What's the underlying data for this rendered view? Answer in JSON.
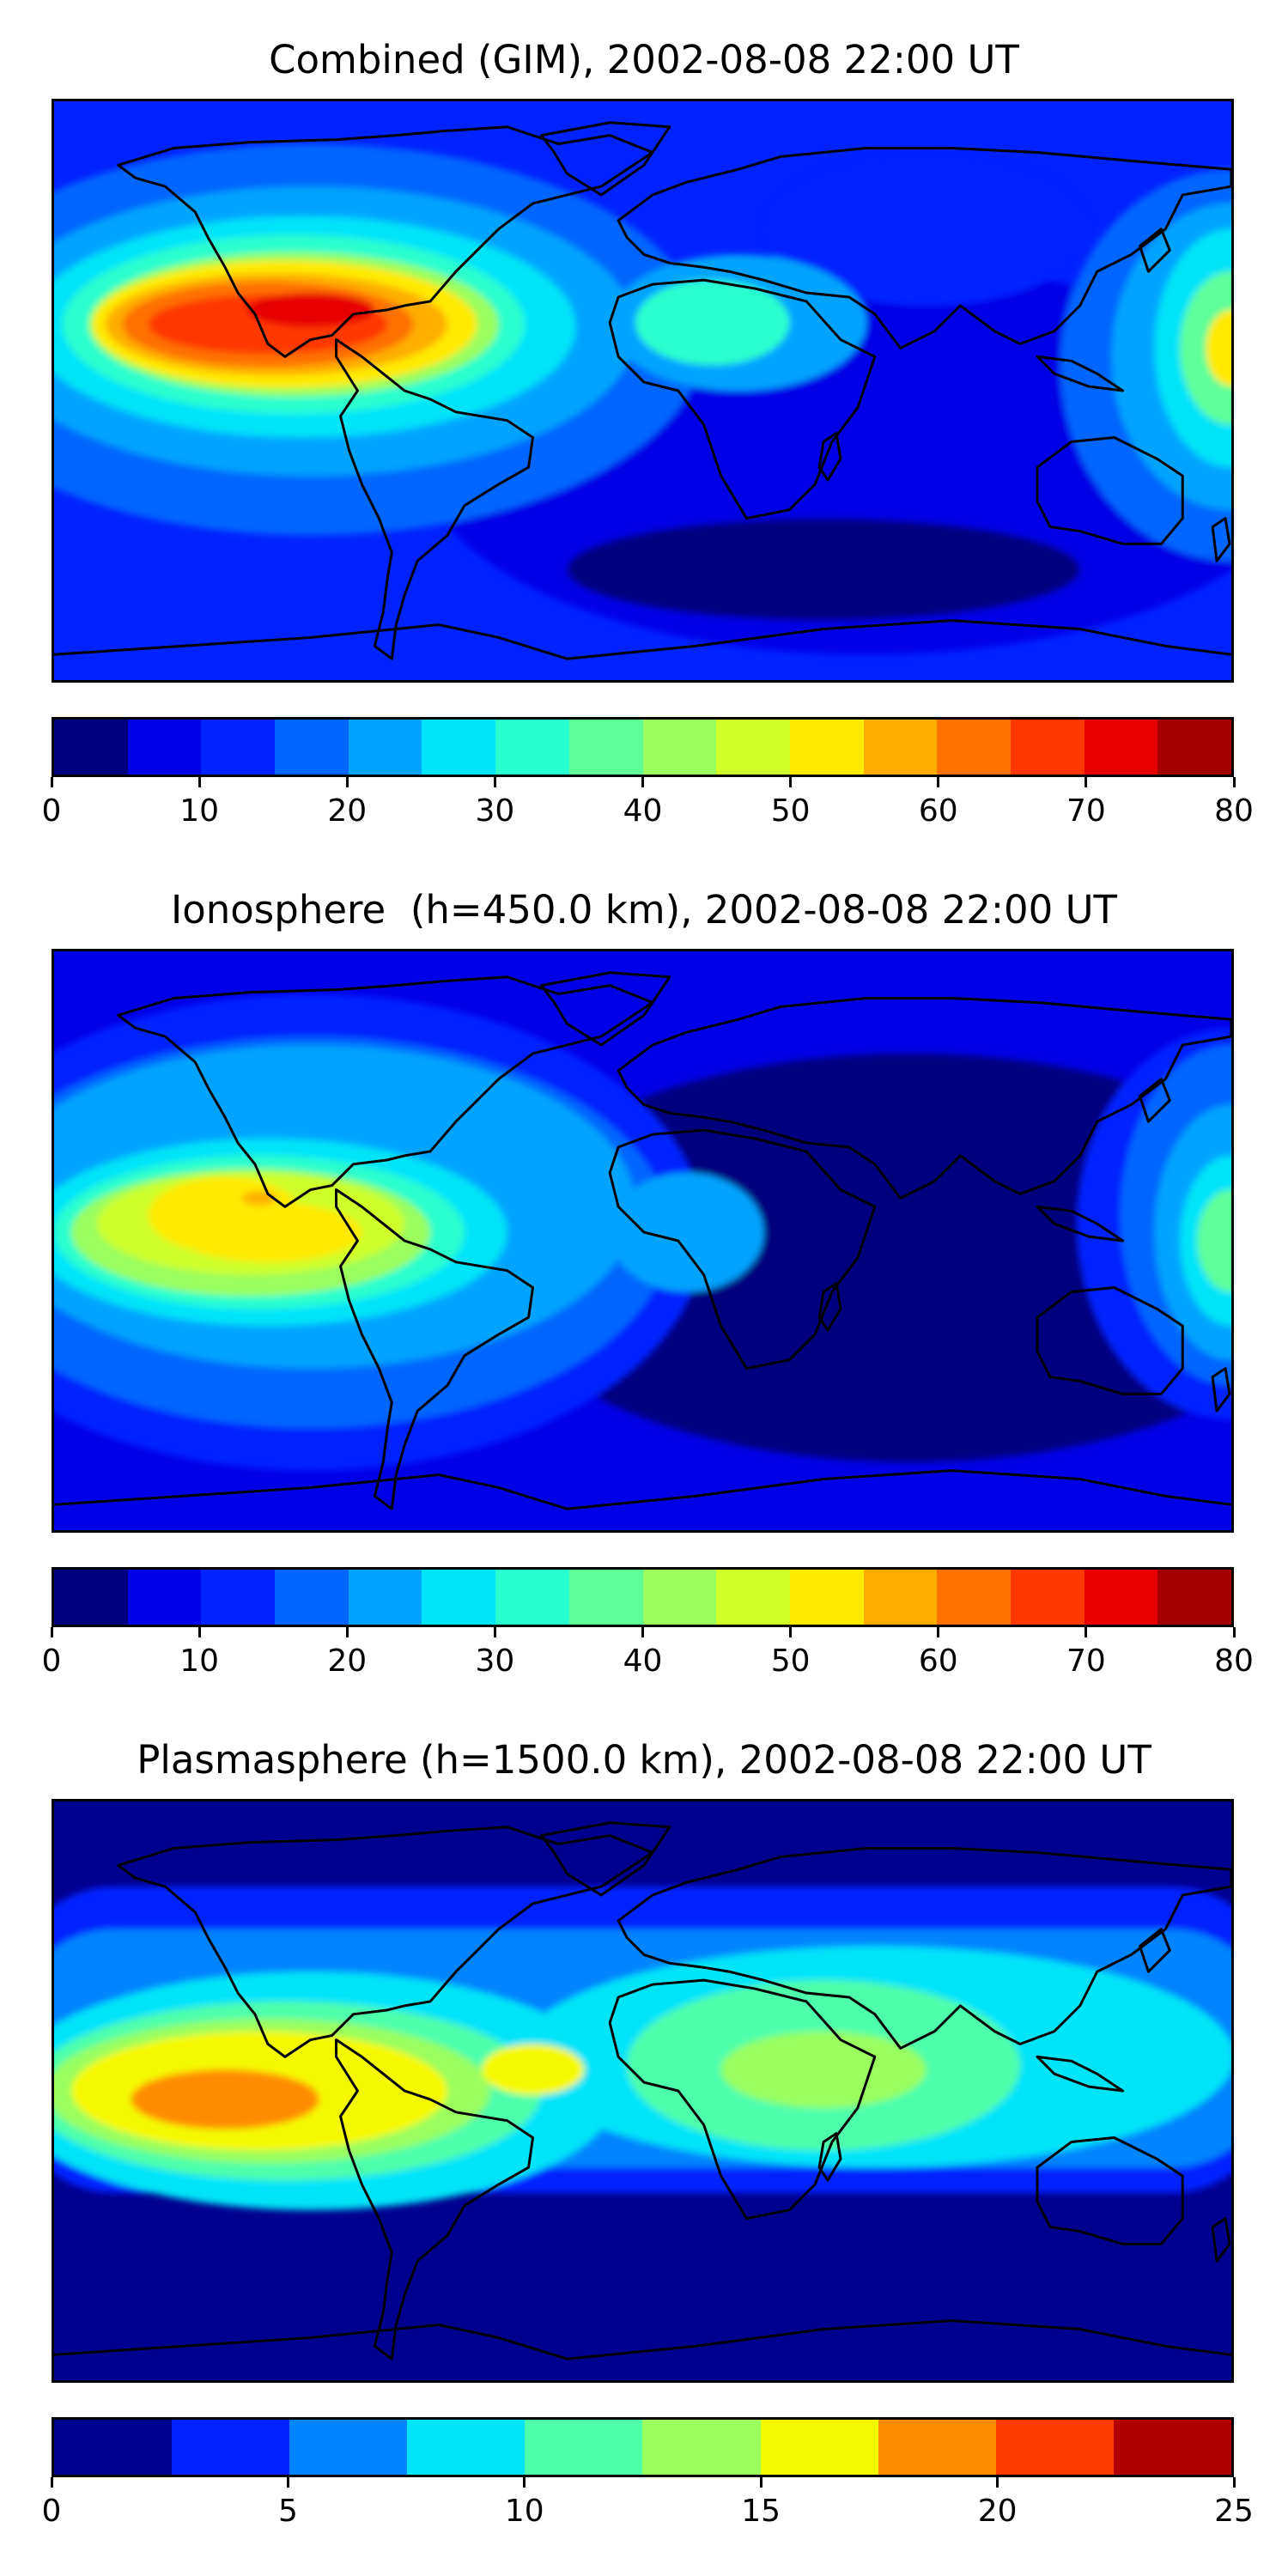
{
  "panels": [
    {
      "title": "Combined (GIM), 2002-08-08 22:00 UT",
      "colorbar": {
        "colors": [
          "#00007f",
          "#0000e6",
          "#0022ff",
          "#0066ff",
          "#00a4ff",
          "#00e4f8",
          "#29ffce",
          "#5eff99",
          "#9aff5e",
          "#ceff29",
          "#ffea00",
          "#ffae00",
          "#ff7100",
          "#ff3800",
          "#e60000",
          "#a30000"
        ],
        "ticks": [
          "0",
          "10",
          "20",
          "30",
          "40",
          "50",
          "60",
          "70",
          "80"
        ]
      }
    },
    {
      "title": "Ionosphere  (h=450.0 km), 2002-08-08 22:00 UT",
      "colorbar": {
        "colors": [
          "#00007f",
          "#0000e6",
          "#0022ff",
          "#0066ff",
          "#00a4ff",
          "#00e4f8",
          "#29ffce",
          "#5eff99",
          "#9aff5e",
          "#ceff29",
          "#ffea00",
          "#ffae00",
          "#ff7100",
          "#ff3800",
          "#e60000",
          "#a30000"
        ],
        "ticks": [
          "0",
          "10",
          "20",
          "30",
          "40",
          "50",
          "60",
          "70",
          "80"
        ]
      }
    },
    {
      "title": "Plasmasphere (h=1500.0 km), 2002-08-08 22:00 UT",
      "colorbar": {
        "colors": [
          "#00008f",
          "#0022ff",
          "#0084ff",
          "#00e4f8",
          "#4dffaa",
          "#9aff5e",
          "#f5f900",
          "#ff8c00",
          "#ff3b00",
          "#b00000"
        ],
        "ticks": [
          "0",
          "5",
          "10",
          "15",
          "20",
          "25"
        ]
      }
    }
  ]
}
